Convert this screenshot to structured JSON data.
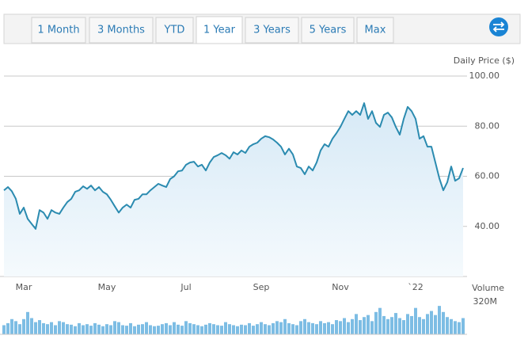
{
  "tabs": [
    "1 Month",
    "3 Months",
    "YTD",
    "1 Year",
    "3 Years",
    "5 Years",
    "Max"
  ],
  "active_tab": 3,
  "chart_data": {
    "type": "line",
    "y_label": "Daily Price ($)",
    "color": "#2b8bb0",
    "categories": [
      null,
      null,
      null,
      null,
      null,
      "Mar",
      null,
      null,
      null,
      null,
      null,
      null,
      null,
      null,
      null,
      null,
      null,
      null,
      null,
      null,
      null,
      null,
      null,
      null,
      null,
      null,
      "May",
      null,
      null,
      null,
      null,
      null,
      null,
      null,
      null,
      null,
      null,
      null,
      null,
      null,
      null,
      null,
      null,
      null,
      null,
      null,
      "Jul",
      null,
      null,
      null,
      null,
      null,
      null,
      null,
      null,
      null,
      null,
      null,
      null,
      null,
      null,
      null,
      null,
      null,
      null,
      "Sep",
      null,
      null,
      null,
      null,
      null,
      null,
      null,
      null,
      null,
      null,
      null,
      null,
      null,
      null,
      null,
      null,
      null,
      null,
      null,
      "Nov",
      null,
      null,
      null,
      null,
      null,
      null,
      null,
      null,
      null,
      null,
      null,
      null,
      null,
      null,
      null,
      null,
      null,
      null,
      "`22",
      null,
      null,
      null,
      null,
      null,
      null,
      null,
      null,
      null,
      null,
      null,
      null
    ],
    "values": [
      54.4,
      55.7,
      54,
      51,
      45,
      47.5,
      43,
      41,
      39,
      46.5,
      45.5,
      43,
      46.5,
      45.5,
      45,
      47.5,
      49.7,
      51,
      53.8,
      54.4,
      56,
      55,
      56.3,
      54.4,
      55.7,
      53.8,
      52.8,
      50.6,
      48,
      45.5,
      47.5,
      48.7,
      47.5,
      50.6,
      51,
      52.8,
      52.8,
      54.4,
      55.7,
      57,
      56.3,
      55.7,
      58.9,
      60,
      62,
      62.3,
      64.6,
      65.5,
      65.8,
      63.9,
      64.6,
      62.3,
      65.5,
      67.7,
      68.4,
      69.3,
      68.4,
      67,
      69.6,
      68.7,
      70.3,
      69.3,
      71.8,
      72.8,
      73.4,
      75,
      76,
      75.6,
      74.7,
      73.4,
      71.8,
      68.7,
      71,
      68.7,
      63.9,
      63.3,
      60.8,
      63.9,
      62.3,
      65.5,
      70.3,
      72.8,
      71.8,
      75,
      77.2,
      79.7,
      82.9,
      86,
      84.5,
      86,
      84.5,
      89.2,
      82.9,
      86,
      81.3,
      79.7,
      84.5,
      85.4,
      83.5,
      79.7,
      76.6,
      82.9,
      87.7,
      86,
      82.9,
      75,
      76,
      71.8,
      71.8,
      65.5,
      59.2,
      54.4,
      57.6,
      63.9,
      58.2,
      59.2,
      63.3
    ],
    "ylim": [
      20,
      100
    ],
    "yticks": [
      {
        "value": 40,
        "label": "40.00"
      },
      {
        "value": 60,
        "label": "60.00"
      },
      {
        "value": 80,
        "label": "80.00"
      },
      {
        "value": 100,
        "label": "100.00"
      }
    ],
    "grid": true,
    "volume": {
      "type": "bar",
      "label": "Volume",
      "color": "#7dbde4",
      "ylim": [
        0,
        320
      ],
      "yticks": [
        {
          "value": 320,
          "label": "320M"
        }
      ],
      "values": [
        90,
        110,
        150,
        130,
        100,
        150,
        220,
        160,
        120,
        140,
        110,
        100,
        120,
        90,
        130,
        120,
        100,
        95,
        80,
        110,
        90,
        100,
        85,
        110,
        95,
        80,
        100,
        90,
        130,
        120,
        90,
        85,
        110,
        80,
        95,
        100,
        120,
        90,
        80,
        85,
        100,
        110,
        90,
        120,
        95,
        85,
        130,
        110,
        100,
        90,
        80,
        95,
        110,
        100,
        90,
        85,
        120,
        100,
        90,
        80,
        95,
        90,
        110,
        85,
        100,
        120,
        100,
        90,
        110,
        130,
        120,
        150,
        110,
        100,
        90,
        130,
        150,
        120,
        110,
        100,
        130,
        110,
        120,
        100,
        140,
        130,
        160,
        120,
        150,
        200,
        140,
        170,
        190,
        130,
        220,
        260,
        180,
        150,
        170,
        210,
        160,
        140,
        200,
        180,
        260,
        170,
        150,
        200,
        230,
        190,
        280,
        220,
        170,
        150,
        130,
        120,
        160
      ]
    }
  }
}
